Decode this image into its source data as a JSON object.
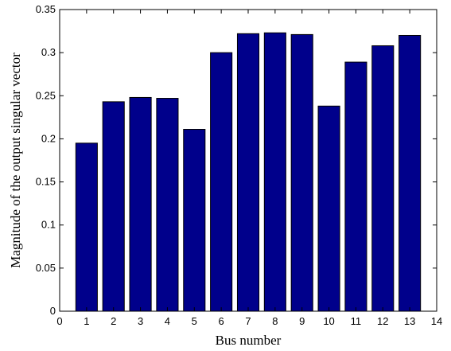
{
  "chart_data": {
    "type": "bar",
    "categories": [
      "1",
      "2",
      "3",
      "4",
      "5",
      "6",
      "7",
      "8",
      "9",
      "10",
      "11",
      "12",
      "13"
    ],
    "values": [
      0.195,
      0.243,
      0.248,
      0.247,
      0.211,
      0.3,
      0.322,
      0.323,
      0.321,
      0.238,
      0.289,
      0.308,
      0.32
    ],
    "xlabel": "Bus number",
    "ylabel": "Magnitude of the output singular vector",
    "xlim": [
      0,
      14
    ],
    "ylim": [
      0,
      0.35
    ],
    "xticks": [
      "0",
      "1",
      "2",
      "3",
      "4",
      "5",
      "6",
      "7",
      "8",
      "9",
      "10",
      "11",
      "12",
      "13",
      "14"
    ],
    "yticks": [
      "0",
      "0.05",
      "0.1",
      "0.15",
      "0.2",
      "0.25",
      "0.3",
      "0.35"
    ],
    "grid": false,
    "bar_color": "#00008b"
  }
}
